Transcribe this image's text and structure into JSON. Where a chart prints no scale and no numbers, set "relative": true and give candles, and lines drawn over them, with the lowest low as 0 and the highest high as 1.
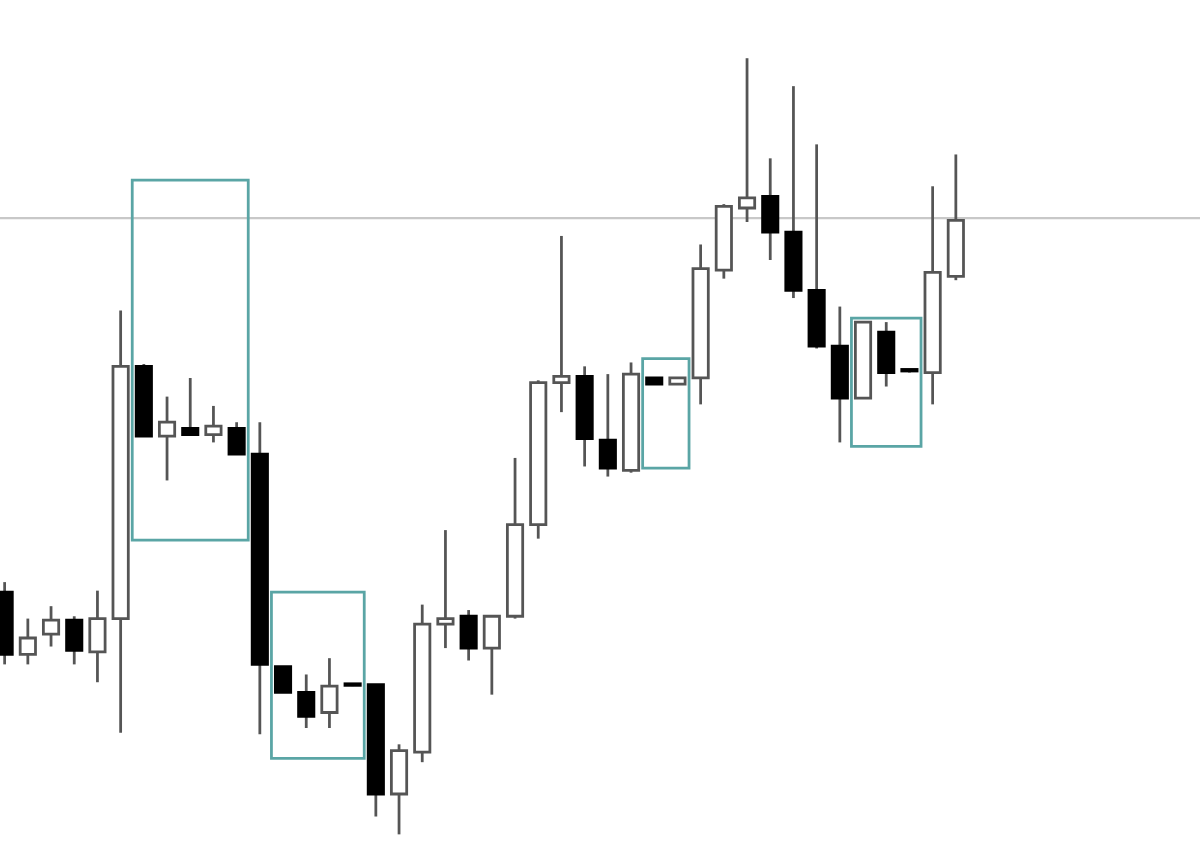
{
  "chart_data": {
    "type": "candlestick",
    "relative": true,
    "categories": [
      null,
      null,
      null,
      null,
      null,
      null,
      null,
      null,
      null,
      null,
      null,
      null,
      null,
      null,
      null,
      null,
      null,
      null,
      null,
      null,
      null,
      null,
      null,
      null,
      null,
      null,
      null,
      null,
      null,
      null,
      null,
      null,
      null,
      null,
      null,
      null,
      null,
      null,
      null,
      null,
      null,
      null
    ],
    "ohlc": [
      [
        0.312,
        0.325,
        0.219,
        0.232
      ],
      [
        0.232,
        0.278,
        0.219,
        0.253
      ],
      [
        0.258,
        0.294,
        0.242,
        0.276
      ],
      [
        0.276,
        0.281,
        0.219,
        0.237
      ],
      [
        0.235,
        0.314,
        0.196,
        0.278
      ],
      [
        0.278,
        0.675,
        0.131,
        0.603
      ],
      [
        0.603,
        0.606,
        0.513,
        0.513
      ],
      [
        0.513,
        0.564,
        0.456,
        0.531
      ],
      [
        0.523,
        0.588,
        0.515,
        0.515
      ],
      [
        0.515,
        0.552,
        0.505,
        0.526
      ],
      [
        0.523,
        0.531,
        0.49,
        0.49
      ],
      [
        0.49,
        0.531,
        0.129,
        0.219
      ],
      [
        0.216,
        0.216,
        0.183,
        0.183
      ],
      [
        0.183,
        0.206,
        0.137,
        0.152
      ],
      [
        0.157,
        0.227,
        0.137,
        0.191
      ],
      [
        0.193,
        0.193,
        0.191,
        0.192
      ],
      [
        0.193,
        0.193,
        0.023,
        0.052
      ],
      [
        0.052,
        0.116,
        0,
        0.108
      ],
      [
        0.106,
        0.296,
        0.093,
        0.271
      ],
      [
        0.271,
        0.392,
        0.24,
        0.278
      ],
      [
        0.281,
        0.289,
        0.224,
        0.24
      ],
      [
        0.24,
        0.281,
        0.18,
        0.281
      ],
      [
        0.281,
        0.485,
        0.278,
        0.399
      ],
      [
        0.399,
        0.585,
        0.381,
        0.582
      ],
      [
        0.582,
        0.771,
        0.544,
        0.59
      ],
      [
        0.59,
        0.603,
        0.474,
        0.51
      ],
      [
        0.508,
        0.593,
        0.461,
        0.472
      ],
      [
        0.469,
        0.608,
        0.466,
        0.593
      ],
      [
        0.588,
        0.588,
        0.58,
        0.58
      ],
      [
        0.58,
        0.588,
        0.58,
        0.588
      ],
      [
        0.588,
        0.76,
        0.554,
        0.729
      ],
      [
        0.727,
        0.812,
        0.716,
        0.809
      ],
      [
        0.807,
        1,
        0.789,
        0.82
      ],
      [
        0.822,
        0.871,
        0.74,
        0.776
      ],
      [
        0.776,
        0.964,
        0.691,
        0.701
      ],
      [
        0.701,
        0.889,
        0.626,
        0.629
      ],
      [
        0.629,
        0.68,
        0.505,
        0.562
      ],
      [
        0.562,
        0.66,
        0.562,
        0.66
      ],
      [
        0.647,
        0.66,
        0.577,
        0.595
      ],
      [
        0.598,
        0.598,
        0.595,
        0.597
      ],
      [
        0.595,
        0.835,
        0.554,
        0.724
      ],
      [
        0.719,
        0.876,
        0.714,
        0.791
      ]
    ],
    "ref_lines": [
      {
        "axis": "y",
        "value": 0.794,
        "color": "#c8c8c8"
      }
    ],
    "legend": false
  }
}
